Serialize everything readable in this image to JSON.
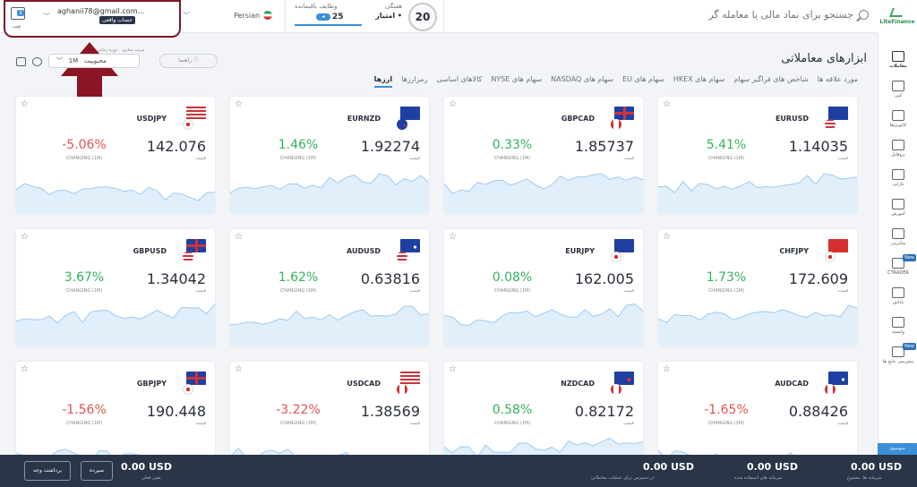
{
  "header": {
    "search_placeholder": "جستجو برای نماد مالی یا معامله گر",
    "logo_text": "LiteFinance",
    "level": {
      "number": "20",
      "title": "هفتگی",
      "name": "امتیاز •"
    },
    "tasks": {
      "label": "وظایف باقیمانده",
      "count": "25"
    },
    "language": "Persian",
    "account": {
      "email": "aghanii78@gmail.com...",
      "type": "حساب واقعی"
    },
    "chat": {
      "count": "3",
      "label": "چت"
    }
  },
  "sidebar": {
    "items": [
      {
        "label": "معاملات",
        "icon": "chart-icon"
      },
      {
        "label": "کپی",
        "icon": "copy-icon"
      },
      {
        "label": "کاتوری‌ها",
        "icon": "trophy-icon"
      },
      {
        "label": "پروفایل",
        "icon": "profile-icon"
      },
      {
        "label": "دارایی",
        "icon": "wallet-icon"
      },
      {
        "label": "آموزش",
        "icon": "education-icon"
      },
      {
        "label": "متاتریدر",
        "icon": "mt-icon"
      },
      {
        "label": "CTRADER",
        "icon": "ctrader-icon",
        "tag": "New"
      },
      {
        "label": "پاداش",
        "icon": "gift-icon"
      },
      {
        "label": "وابسته",
        "icon": "partner-icon"
      },
      {
        "label": "پیش‌بینی نتایج ها",
        "icon": "prediction-icon",
        "tag": "New"
      }
    ],
    "footer_label": "سوسوی"
  },
  "page": {
    "title": "ابزارهای معاملاتی",
    "tabs": [
      "ارزها",
      "رمزارزها",
      "کالاهای اساسی",
      "سهام های NYSE",
      "سهام های NASDAQ",
      "سهام های EU",
      "سهام های HKEX",
      "شاخص های فراگیر سهام",
      "مورد علاقه ها"
    ],
    "sort_label": "مرتب سازی",
    "sort_value": "محبوبیت",
    "period_label": "دوره زمانی",
    "period_value": "1M",
    "guide_label": "راهنما"
  },
  "price_label": "قیمت",
  "change_label": "CHANGING (1M)",
  "cards": [
    {
      "symbol": "EURUSD",
      "price": "1.14035",
      "change": "5.41%",
      "dir": "pos",
      "f1": "eu",
      "f2": "us"
    },
    {
      "symbol": "GBPCAD",
      "price": "1.85737",
      "change": "0.33%",
      "dir": "pos",
      "f1": "gb",
      "f2": "ca"
    },
    {
      "symbol": "EURNZD",
      "price": "1.92274",
      "change": "1.46%",
      "dir": "pos",
      "f1": "eu",
      "f2": "nz"
    },
    {
      "symbol": "USDJPY",
      "price": "142.076",
      "change": "-5.06%",
      "dir": "neg",
      "f1": "us",
      "f2": "jp"
    },
    {
      "symbol": "CHFJPY",
      "price": "172.609",
      "change": "1.73%",
      "dir": "pos",
      "f1": "ch",
      "f2": "jp"
    },
    {
      "symbol": "EURJPY",
      "price": "162.005",
      "change": "0.08%",
      "dir": "pos",
      "f1": "eu",
      "f2": "jp"
    },
    {
      "symbol": "AUDUSD",
      "price": "0.63816",
      "change": "1.62%",
      "dir": "pos",
      "f1": "au",
      "f2": "us"
    },
    {
      "symbol": "GBPUSD",
      "price": "1.34042",
      "change": "3.67%",
      "dir": "pos",
      "f1": "gb",
      "f2": "us"
    },
    {
      "symbol": "AUDCAD",
      "price": "0.88426",
      "change": "-1.65%",
      "dir": "neg",
      "f1": "au",
      "f2": "ca"
    },
    {
      "symbol": "NZDCAD",
      "price": "0.82172",
      "change": "0.58%",
      "dir": "pos",
      "f1": "nz",
      "f2": "ca"
    },
    {
      "symbol": "USDCAD",
      "price": "1.38569",
      "change": "-3.22%",
      "dir": "neg",
      "f1": "us",
      "f2": "ca"
    },
    {
      "symbol": "GBPJPY",
      "price": "190.448",
      "change": "-1.56%",
      "dir": "neg",
      "f1": "gb",
      "f2": "jp"
    }
  ],
  "footer": {
    "withdraw": "برداشت وجه",
    "deposit": "سپرده",
    "pnl_value": "0.00 USD",
    "pnl_label": "تغییر فعلی",
    "available_value": "0.00 USD",
    "available_label": "در دسترس برای عملیات معاملاتی",
    "used_value": "0.00 USD",
    "used_label": "سرمایه های استفاده شده",
    "total_value": "0.00 USD",
    "total_label": "سرمایه ها، مجموع"
  },
  "colors": {
    "positive": "#33b35b",
    "negative": "#e25252",
    "accent": "#3b8fd9",
    "highlight": "#7b1928"
  }
}
